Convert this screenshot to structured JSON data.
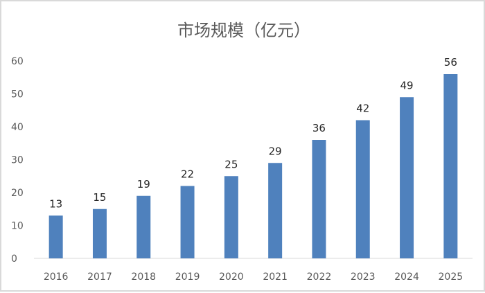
{
  "chart_data": {
    "type": "bar",
    "title": "市场规模（亿元）",
    "categories": [
      "2016",
      "2017",
      "2018",
      "2019",
      "2020",
      "2021",
      "2022",
      "2023",
      "2024",
      "2025"
    ],
    "values": [
      13,
      15,
      19,
      22,
      25,
      29,
      36,
      42,
      49,
      56
    ],
    "ylim": [
      0,
      60
    ],
    "yticks": [
      "0",
      "10",
      "20",
      "30",
      "40",
      "50",
      "60"
    ],
    "grid": false,
    "data_labels": true,
    "bar_color": "#4f81bd"
  }
}
